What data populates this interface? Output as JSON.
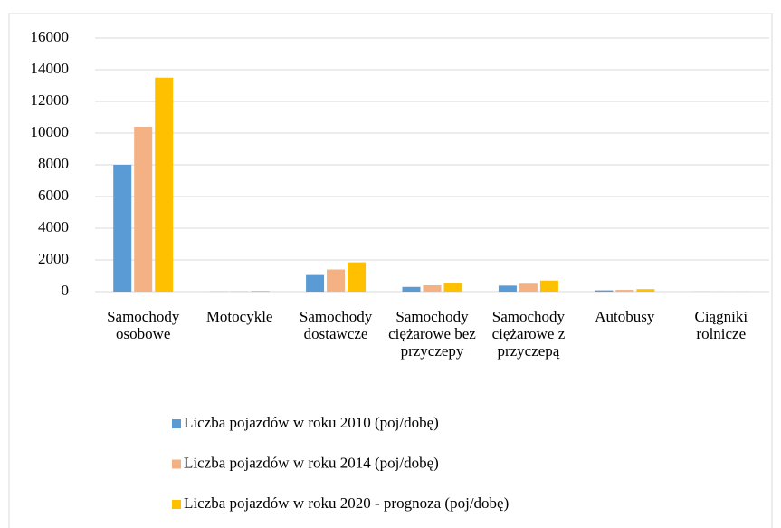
{
  "chart_data": {
    "type": "bar",
    "categories": [
      "Samochody osobowe",
      "Motocykle",
      "Samochody dostawcze",
      "Samochody ciężarowe bez przyczepy",
      "Samochody ciężarowe z przyczepą",
      "Autobusy",
      "Ciągniki rolnicze"
    ],
    "series": [
      {
        "name": "Liczba pojazdów w roku 2010 (poj/dobę)",
        "color": "#5b9bd5",
        "values": [
          8000,
          10,
          1050,
          300,
          380,
          80,
          5
        ]
      },
      {
        "name": "Liczba pojazdów w roku 2014 (poj/dobę)",
        "color": "#f4b183",
        "values": [
          10400,
          30,
          1400,
          400,
          500,
          110,
          8
        ]
      },
      {
        "name": "Liczba pojazdów w roku 2020 - prognoza (poj/dobę)",
        "color": "#ffc000",
        "values": [
          13500,
          50,
          1850,
          550,
          700,
          160,
          10
        ]
      }
    ],
    "ylim": [
      0,
      16000
    ],
    "yticks": [
      0,
      2000,
      4000,
      6000,
      8000,
      10000,
      12000,
      14000,
      16000
    ],
    "grid": true,
    "legend": "bottom"
  }
}
